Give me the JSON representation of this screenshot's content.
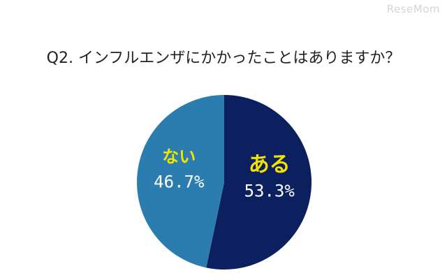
{
  "watermark": "ReseMom",
  "chart_data": {
    "type": "pie",
    "title": "Q2. インフルエンザにかかったことはありますか？",
    "slices": [
      {
        "label": "ある",
        "percent_label": "53.3%",
        "value": 53.3,
        "color": "#0c1f5e",
        "label_color": "#f2e300"
      },
      {
        "label": "ない",
        "percent_label": "46.7%",
        "value": 46.7,
        "color": "#2b7db0",
        "label_color": "#f2e300"
      }
    ],
    "start": "top",
    "direction": "clockwise",
    "legend": "none"
  }
}
